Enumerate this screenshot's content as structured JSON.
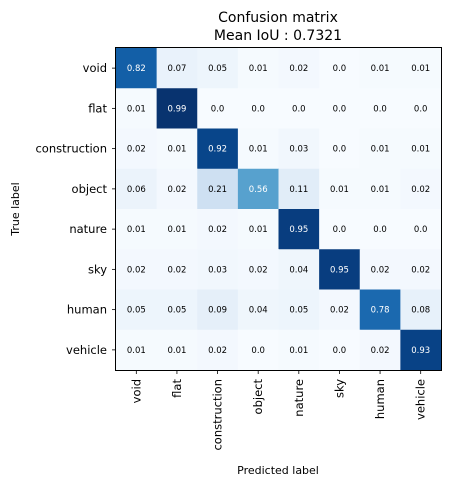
{
  "chart_data": {
    "type": "heatmap",
    "title": "Confusion matrix",
    "subtitle": "Mean IoU : 0.7321",
    "xlabel": "Predicted label",
    "ylabel": "True label",
    "row_labels": [
      "void",
      "flat",
      "construction",
      "object",
      "nature",
      "sky",
      "human",
      "vehicle"
    ],
    "col_labels": [
      "void",
      "flat",
      "construction",
      "object",
      "nature",
      "sky",
      "human",
      "vehicle"
    ],
    "values": [
      [
        0.82,
        0.07,
        0.05,
        0.01,
        0.02,
        0.0,
        0.01,
        0.01
      ],
      [
        0.01,
        0.99,
        0.0,
        0.0,
        0.0,
        0.0,
        0.0,
        0.0
      ],
      [
        0.02,
        0.01,
        0.92,
        0.01,
        0.03,
        0.0,
        0.01,
        0.01
      ],
      [
        0.06,
        0.02,
        0.21,
        0.56,
        0.11,
        0.01,
        0.01,
        0.02
      ],
      [
        0.01,
        0.01,
        0.02,
        0.01,
        0.95,
        0.0,
        0.0,
        0.0
      ],
      [
        0.02,
        0.02,
        0.03,
        0.02,
        0.04,
        0.95,
        0.02,
        0.02
      ],
      [
        0.05,
        0.05,
        0.09,
        0.04,
        0.05,
        0.02,
        0.78,
        0.08
      ],
      [
        0.01,
        0.01,
        0.02,
        0.0,
        0.01,
        0.0,
        0.02,
        0.93
      ]
    ],
    "value_range": [
      0,
      1
    ],
    "colormap": "Blues",
    "colormap_low": "#f7fbff",
    "colormap_high": "#08306b",
    "text_color_dark": "#000000",
    "text_color_light": "#ffffff"
  }
}
